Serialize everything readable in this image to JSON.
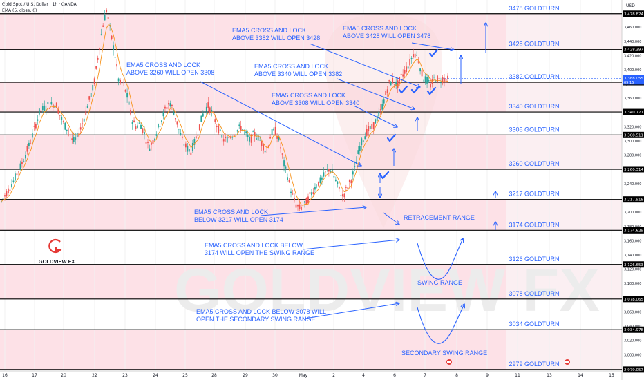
{
  "header": {
    "symbol": "Gold Spot / U.S. Dollar · 1h · OANDA",
    "indicator": "EMA (5, close, 0)",
    "currency": "USD"
  },
  "watermark": "GOLDVIEW FX",
  "logo": {
    "text": "GOLDVIEW FX"
  },
  "colors": {
    "band": "#fde1e7",
    "bandAlt": "#ffffff",
    "label": "#2962ff",
    "level": "#000000",
    "up": "#26a69a",
    "down": "#ef5350",
    "ema": "#f7931a",
    "price": "#2962ff"
  },
  "chart_data": {
    "type": "candlestick",
    "x_ticks": [
      "16",
      "17",
      "20",
      "22",
      "23",
      "24",
      "25",
      "28",
      "29",
      "30",
      "May",
      "2",
      "4",
      "6",
      "7",
      "8",
      "9",
      "11",
      "13",
      "14",
      "15"
    ],
    "y_ticks": [
      3460,
      3440,
      3420,
      3400,
      3380,
      3360,
      3340,
      3320,
      3300,
      3280,
      3260,
      3240,
      3220,
      3200,
      3180,
      3160,
      3140,
      3120,
      3100,
      3080,
      3060,
      3040,
      3020,
      3000
    ],
    "ylim": [
      2977,
      3498
    ],
    "current_price": {
      "value": "3,388.055",
      "countdown": "09:15",
      "price": 3388.055
    },
    "levels": [
      {
        "price": 3478.824,
        "tag": "3,478.824",
        "label": "3478 GOLDTURN"
      },
      {
        "price": 3428.397,
        "tag": "3,428.397",
        "label": "3428 GOLDTURN"
      },
      {
        "price": 3382.517,
        "tag": "3,382.517",
        "label": "3382 GOLDTURN"
      },
      {
        "price": 3340.771,
        "tag": "3,340.771",
        "label": "3340 GOLDTURN"
      },
      {
        "price": 3308.511,
        "tag": "3,308.511",
        "label": "3308 GOLDTURN"
      },
      {
        "price": 3260.314,
        "tag": "3,260.314",
        "label": "3260 GOLDTURN"
      },
      {
        "price": 3217.918,
        "tag": "3,217.918",
        "label": "3217 GOLDTURN"
      },
      {
        "price": 3174.629,
        "tag": "3,174.629",
        "label": "3174 GOLDTURN"
      },
      {
        "price": 3126.653,
        "tag": "3,126.653",
        "label": "3126 GOLDTURN"
      },
      {
        "price": 3078.065,
        "tag": "3,078.065",
        "label": "3078 GOLDTURN"
      },
      {
        "price": 3034.978,
        "tag": "3,034.978",
        "label": "3034 GOLDTURN"
      },
      {
        "price": 2979.057,
        "tag": "2,979.057",
        "label": "2979 GOLDTURN"
      }
    ],
    "price_path": [
      [
        0,
        3215
      ],
      [
        3,
        3245
      ],
      [
        5,
        3270
      ],
      [
        7,
        3300
      ],
      [
        9,
        3340
      ],
      [
        11,
        3350
      ],
      [
        13,
        3352
      ],
      [
        14,
        3335
      ],
      [
        15,
        3322
      ],
      [
        16,
        3315
      ],
      [
        17,
        3298
      ],
      [
        18,
        3305
      ],
      [
        19,
        3320
      ],
      [
        20,
        3340
      ],
      [
        21,
        3360
      ],
      [
        22,
        3380
      ],
      [
        23,
        3420
      ],
      [
        24,
        3460
      ],
      [
        25,
        3485
      ],
      [
        26,
        3450
      ],
      [
        27,
        3420
      ],
      [
        28,
        3380
      ],
      [
        29,
        3380
      ],
      [
        30,
        3360
      ],
      [
        31,
        3330
      ],
      [
        32,
        3320
      ],
      [
        33,
        3325
      ],
      [
        34,
        3310
      ],
      [
        35,
        3290
      ],
      [
        36,
        3300
      ],
      [
        37,
        3315
      ],
      [
        38,
        3330
      ],
      [
        39,
        3345
      ],
      [
        40,
        3355
      ],
      [
        41,
        3340
      ],
      [
        42,
        3320
      ],
      [
        43,
        3300
      ],
      [
        44,
        3290
      ],
      [
        45,
        3285
      ],
      [
        46,
        3300
      ],
      [
        47,
        3320
      ],
      [
        48,
        3340
      ],
      [
        49,
        3350
      ],
      [
        50,
        3340
      ],
      [
        51,
        3325
      ],
      [
        52,
        3310
      ],
      [
        53,
        3300
      ],
      [
        54,
        3305
      ],
      [
        55,
        3310
      ],
      [
        56,
        3315
      ],
      [
        57,
        3320
      ],
      [
        58,
        3310
      ],
      [
        59,
        3300
      ],
      [
        60,
        3310
      ],
      [
        61,
        3305
      ],
      [
        62,
        3295
      ],
      [
        63,
        3285
      ],
      [
        64,
        3310
      ],
      [
        65,
        3315
      ],
      [
        66,
        3300
      ],
      [
        67,
        3270
      ],
      [
        68,
        3250
      ],
      [
        69,
        3225
      ],
      [
        70,
        3210
      ],
      [
        71,
        3205
      ],
      [
        72,
        3210
      ],
      [
        73,
        3220
      ],
      [
        74,
        3230
      ],
      [
        75,
        3240
      ],
      [
        76,
        3245
      ],
      [
        77,
        3255
      ],
      [
        78,
        3262
      ],
      [
        79,
        3250
      ],
      [
        80,
        3235
      ],
      [
        81,
        3222
      ],
      [
        82,
        3232
      ],
      [
        83,
        3245
      ],
      [
        84,
        3262
      ],
      [
        85,
        3290
      ],
      [
        86,
        3305
      ],
      [
        87,
        3315
      ],
      [
        88,
        3318
      ],
      [
        89,
        3330
      ],
      [
        90,
        3340
      ],
      [
        91,
        3360
      ],
      [
        92,
        3380
      ],
      [
        93,
        3385
      ],
      [
        94,
        3378
      ],
      [
        95,
        3390
      ],
      [
        96,
        3400
      ],
      [
        97,
        3410
      ],
      [
        98,
        3425
      ],
      [
        99,
        3415
      ],
      [
        100,
        3390
      ],
      [
        101,
        3385
      ],
      [
        102,
        3378
      ],
      [
        103,
        3390
      ],
      [
        104,
        3385
      ],
      [
        105,
        3388
      ],
      [
        106,
        3386
      ]
    ],
    "annotations": [
      {
        "lines": [
          "EMA5 CROSS AND LOCK",
          "ABOVE 3428 WILL OPEN 3478"
        ]
      },
      {
        "lines": [
          "EMA5 CROSS AND LOCK",
          "ABOVE 3382 WILL OPEN 3428"
        ]
      },
      {
        "lines": [
          "EMA5 CROSS AND LOCK",
          "ABOVE 3260 WILL OPEN 3308"
        ]
      },
      {
        "lines": [
          "EMA5 CROSS AND LOCK",
          "ABOVE 3340 WILL OPEN 3382"
        ]
      },
      {
        "lines": [
          "EMA5 CROSS AND LOCK",
          "ABOVE 3308 WILL OPEN 3340"
        ]
      },
      {
        "lines": [
          "EMA5 CROSS AND LOCK",
          "BELOW 3217 WILL OPEN 3174"
        ]
      },
      {
        "lines": [
          "RETRACEMENT RANGE"
        ]
      },
      {
        "lines": [
          "EMA5 CROSS AND LOCK BELOW",
          "3174 WILL OPEN THE SWING RANGE"
        ]
      },
      {
        "lines": [
          "SWING RANGE"
        ]
      },
      {
        "lines": [
          "EMA5 CROSS AND LOCK BELOW 3078 WILL",
          "OPEN THE SECONDARY SWING RANGE"
        ]
      },
      {
        "lines": [
          "SECONDARY SWING RANGE"
        ]
      }
    ]
  }
}
